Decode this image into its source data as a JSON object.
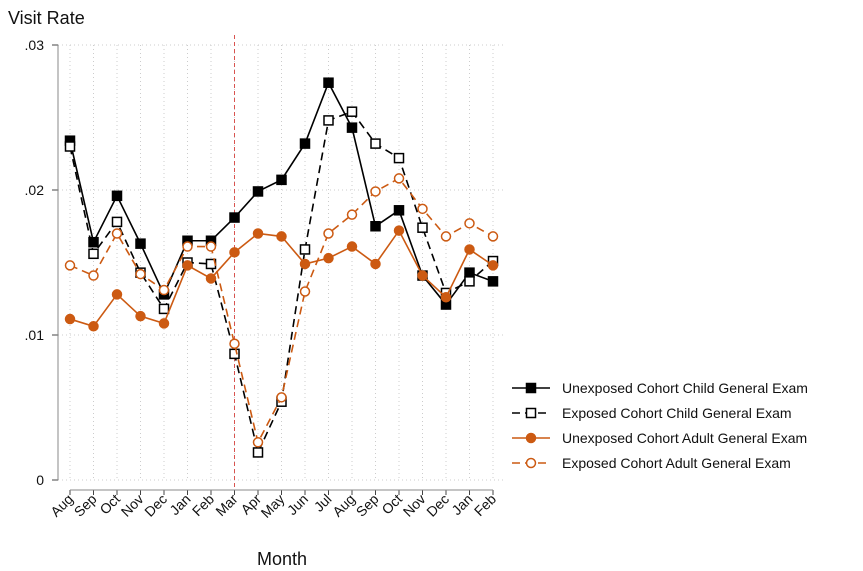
{
  "chart_data": {
    "type": "line",
    "y_label": "Visit Rate",
    "x_label": "Month",
    "categories": [
      "Aug",
      "Sep",
      "Oct",
      "Nov",
      "Dec",
      "Jan",
      "Feb",
      "Mar",
      "Apr",
      "May",
      "Jun",
      "Jul",
      "Aug",
      "Sep",
      "Oct",
      "Nov",
      "Dec",
      "Jan",
      "Feb"
    ],
    "series": [
      {
        "name": "Unexposed Cohort Child General Exam",
        "color": "#000000",
        "dashed": false,
        "marker": "filled-square",
        "values": [
          0.0234,
          0.0164,
          0.0196,
          0.0163,
          0.0128,
          0.0165,
          0.0165,
          0.0181,
          0.0199,
          0.0207,
          0.0232,
          0.0274,
          0.0243,
          0.0175,
          0.0186,
          0.0141,
          0.0121,
          0.0143,
          0.0137
        ]
      },
      {
        "name": "Exposed Cohort Child General Exam",
        "color": "#000000",
        "dashed": true,
        "marker": "hollow-square",
        "values": [
          0.023,
          0.0156,
          0.0178,
          0.0143,
          0.0118,
          0.015,
          0.0149,
          0.0087,
          0.0019,
          0.0054,
          0.0159,
          0.0248,
          0.0254,
          0.0232,
          0.0222,
          0.0174,
          0.0129,
          0.0137,
          0.0151
        ]
      },
      {
        "name": "Unexposed Cohort Adult General Exam",
        "color": "#cc5a12",
        "dashed": false,
        "marker": "filled-circle",
        "values": [
          0.0111,
          0.0106,
          0.0128,
          0.0113,
          0.0108,
          0.0148,
          0.0139,
          0.0157,
          0.017,
          0.0168,
          0.0149,
          0.0153,
          0.0161,
          0.0149,
          0.0172,
          0.0141,
          0.0126,
          0.0159,
          0.0148
        ]
      },
      {
        "name": "Exposed Cohort Adult General Exam",
        "color": "#cc5a12",
        "dashed": true,
        "marker": "hollow-circle",
        "values": [
          0.0148,
          0.0141,
          0.017,
          0.0142,
          0.0131,
          0.0161,
          0.0161,
          0.0094,
          0.0026,
          0.0057,
          0.013,
          0.017,
          0.0183,
          0.0199,
          0.0208,
          0.0187,
          0.0168,
          0.0177,
          0.0168
        ]
      }
    ],
    "ylim": [
      0,
      0.03
    ],
    "yticks": [
      0,
      {
        "value": 0.01,
        "label": ".01"
      },
      {
        "value": 0.02,
        "label": ".02"
      },
      {
        "value": 0.03,
        "label": ".03"
      }
    ],
    "grid": true,
    "vline_at": "Mar",
    "vline_color": "#d9534f",
    "legend": "right"
  }
}
